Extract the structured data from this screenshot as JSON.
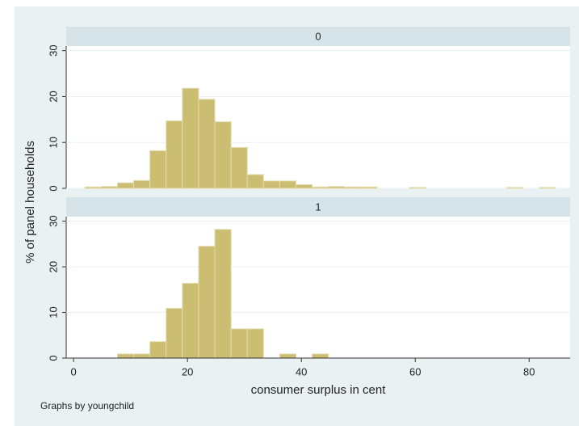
{
  "y_label": "% of panel households",
  "x_label": "consumer surplus in cent",
  "note": "Graphs by youngchild",
  "chart_data": [
    {
      "type": "histogram",
      "title": "0",
      "color": "#cbbd72",
      "bins": [
        2,
        4.85,
        7.7,
        10.55,
        13.4,
        16.25,
        19.1,
        21.95,
        24.8,
        27.65,
        30.5,
        33.35,
        36.2,
        39.05,
        41.9,
        44.75,
        47.6,
        50.45,
        53.3,
        56.15,
        59,
        61.85,
        64.7,
        67.55,
        70.4,
        73.25,
        76.1,
        78.95,
        81.8,
        84.65
      ],
      "values": [
        0.3,
        0.4,
        1.2,
        1.7,
        8.2,
        14.7,
        21.8,
        19.4,
        14.5,
        8.9,
        3.0,
        1.6,
        1.6,
        0.8,
        0.3,
        0.4,
        0.3,
        0.3,
        0,
        0,
        0.2,
        0,
        0,
        0,
        0,
        0,
        0.2,
        0,
        0.2
      ],
      "xlim": [
        -1.3,
        87.2
      ],
      "ylim": [
        0,
        31
      ],
      "yticks": [
        0,
        10,
        20,
        30
      ]
    },
    {
      "type": "histogram",
      "title": "1",
      "color": "#cbbd72",
      "bins": [
        2,
        4.85,
        7.7,
        10.55,
        13.4,
        16.25,
        19.1,
        21.95,
        24.8,
        27.65,
        30.5,
        33.35,
        36.2,
        39.05,
        41.9,
        44.75,
        47.6,
        50.45,
        53.3,
        56.15,
        59,
        61.85,
        64.7,
        67.55,
        70.4,
        73.25,
        76.1,
        78.95,
        81.8,
        84.65
      ],
      "values": [
        0,
        0,
        0.9,
        0.9,
        3.6,
        10.9,
        16.4,
        24.5,
        28.2,
        6.4,
        6.4,
        0,
        0.9,
        0,
        0.9,
        0,
        0,
        0,
        0,
        0,
        0,
        0,
        0,
        0,
        0,
        0,
        0,
        0,
        0
      ],
      "xlim": [
        -1.3,
        87.2
      ],
      "ylim": [
        0,
        31
      ],
      "yticks": [
        0,
        10,
        20,
        30
      ],
      "xticks": [
        0,
        20,
        40,
        60,
        80
      ]
    }
  ]
}
